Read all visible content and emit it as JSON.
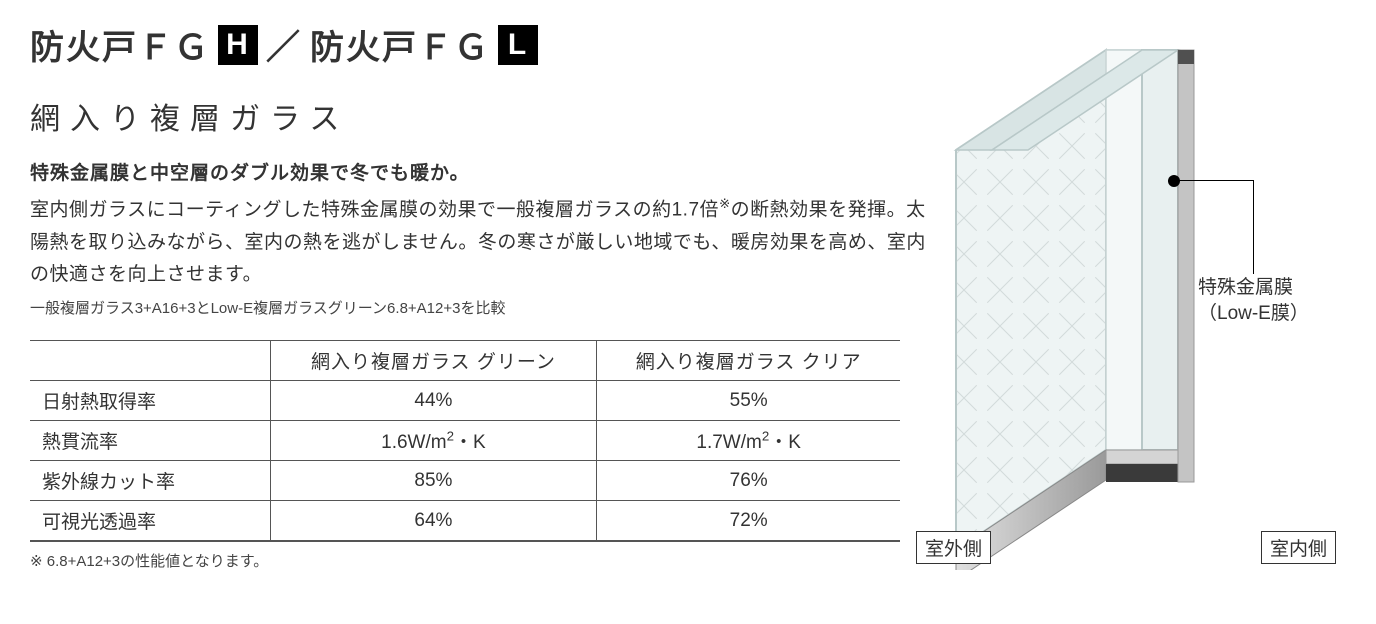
{
  "title": {
    "part1": "防火戸ＦＧ",
    "badge1": "H",
    "slash": "／",
    "part2": "防火戸ＦＧ",
    "badge2": "L"
  },
  "subtitle": "網入り複層ガラス",
  "lead": "特殊金属膜と中空層のダブル効果で冬でも暖か。",
  "body": "室内側ガラスにコーティングした特殊金属膜の効果で一般複層ガラスの約1.7倍<sup>※</sup>の断熱効果を発揮。太陽熱を取り込みながら、室内の熱を逃がしません。冬の寒さが厳しい地域でも、暖房効果を高め、室内の快適さを向上させます。",
  "note1": "一般複層ガラス3+A16+3とLow-E複層ガラスグリーン6.8+A12+3を比較",
  "table": {
    "col1": "網入り複層ガラス グリーン",
    "col2": "網入り複層ガラス クリア",
    "rows": [
      {
        "label": "日射熱取得率",
        "v1": "44%",
        "v2": "55%"
      },
      {
        "label": "熱貫流率",
        "v1": "1.6W/m<sup>2</sup>・K",
        "v2": "1.7W/m<sup>2</sup>・K"
      },
      {
        "label": "紫外線カット率",
        "v1": "85%",
        "v2": "76%"
      },
      {
        "label": "可視光透過率",
        "v1": "64%",
        "v2": "72%"
      }
    ]
  },
  "footnote": "※ 6.8+A12+3の性能値となります。",
  "diagram": {
    "outdoor": "室外側",
    "indoor": "室内側",
    "callout_line1": "特殊金属膜",
    "callout_line2": "（Low-E膜）"
  },
  "colors": {
    "text": "#333333",
    "border": "#555555",
    "badge_bg": "#000000",
    "badge_fg": "#ffffff",
    "glass_light": "#e8f0f0",
    "glass_edge": "#b8c8c8",
    "frame_dark": "#4a4a4a",
    "frame_light": "#d0d0d0"
  }
}
